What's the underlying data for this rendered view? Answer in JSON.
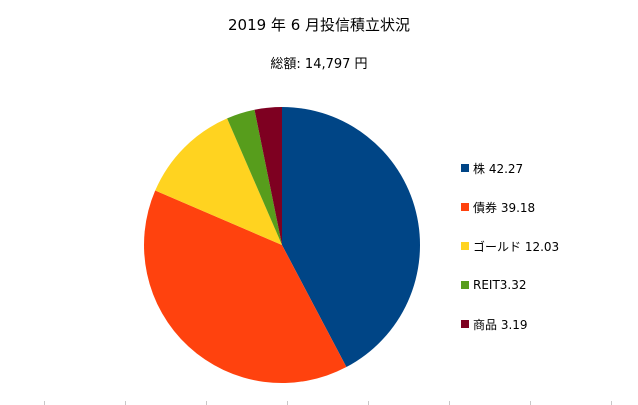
{
  "chart_data": {
    "type": "pie",
    "title": "2019 年 6 月投信積立状況",
    "subtitle": "総額: 14,797 円",
    "legend_position": "right",
    "slices": [
      {
        "label": "株",
        "value": 42.27,
        "legend_text": "株 42.27",
        "color": "#004586"
      },
      {
        "label": "債券",
        "value": 39.18,
        "legend_text": "債券 39.18",
        "color": "#ff420e"
      },
      {
        "label": "ゴールド",
        "value": 12.03,
        "legend_text": "ゴールド 12.03",
        "color": "#ffd320"
      },
      {
        "label": "REIT",
        "value": 3.32,
        "legend_text": "REIT3.32",
        "color": "#579d1c"
      },
      {
        "label": "商品",
        "value": 3.19,
        "legend_text": "商品 3.19",
        "color": "#7e0021"
      }
    ]
  }
}
